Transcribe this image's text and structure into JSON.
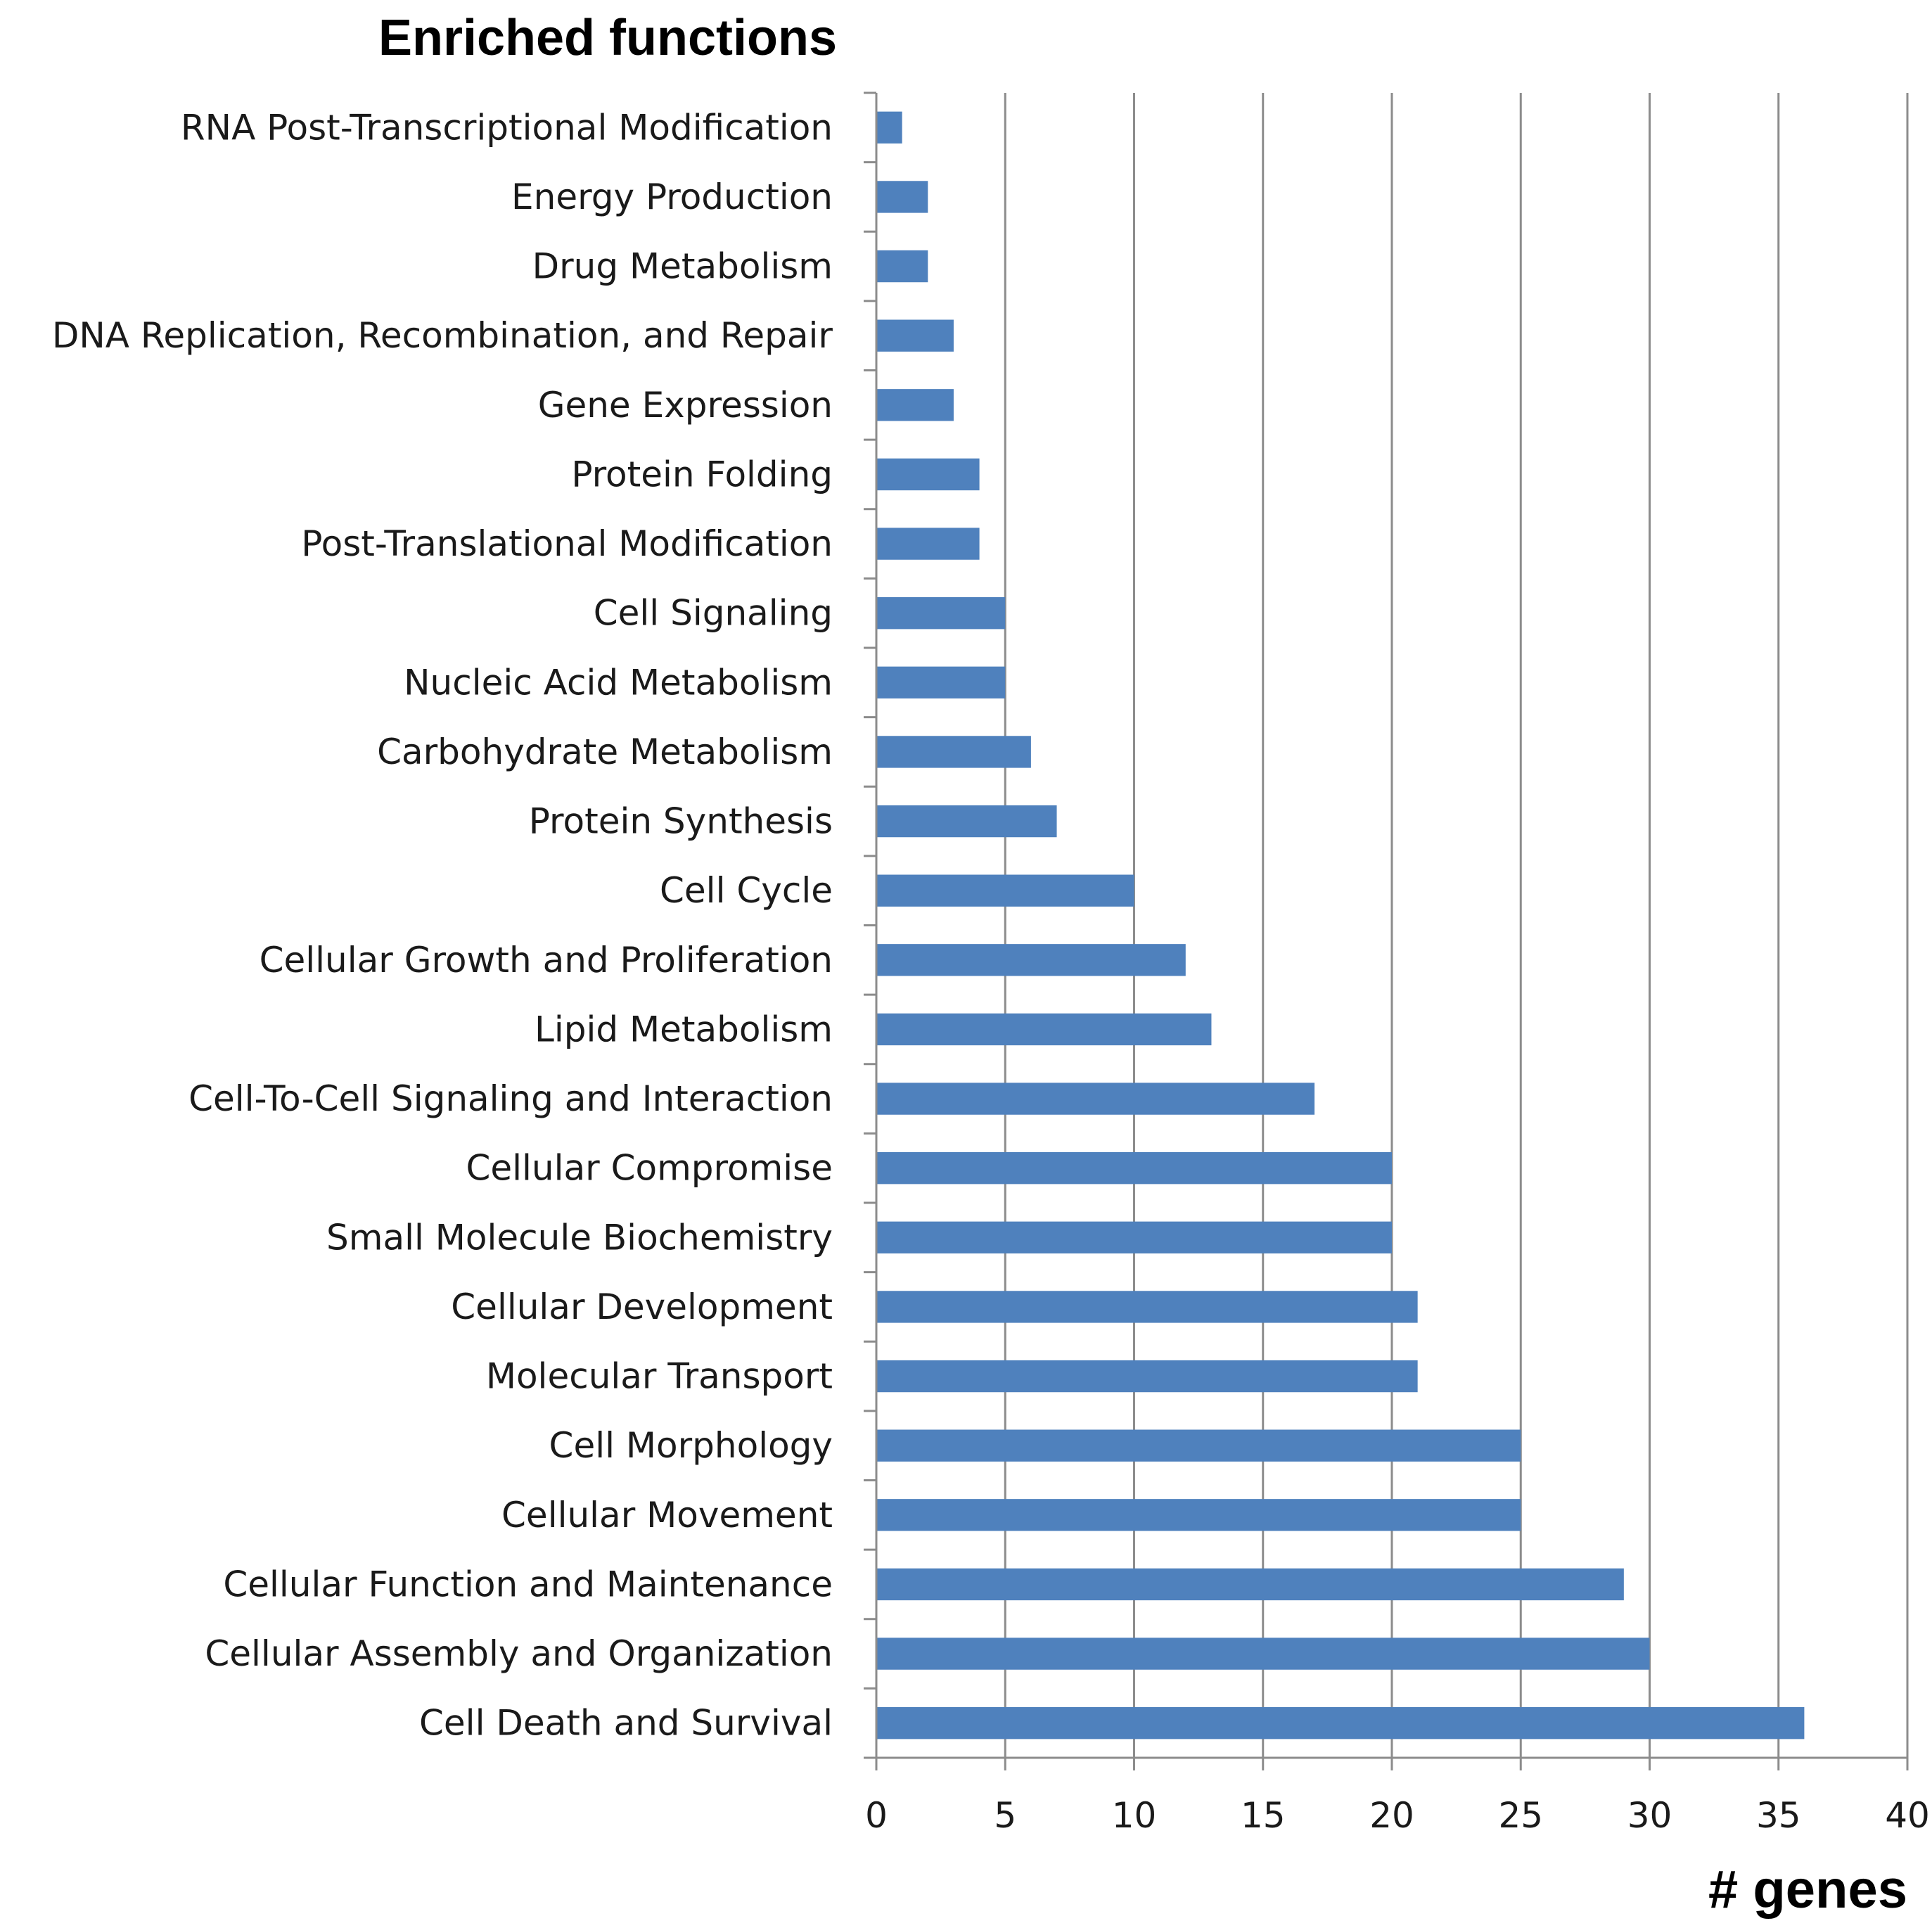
{
  "chart_data": {
    "type": "bar",
    "orientation": "horizontal",
    "title": "Enriched functions",
    "xlabel": "# genes",
    "ylabel": "",
    "xlim": [
      0,
      40
    ],
    "x_ticks": [
      0,
      5,
      10,
      15,
      20,
      25,
      30,
      35,
      40
    ],
    "grid": "vertical",
    "legend": "none",
    "bar_color": "#4f81bd",
    "categories": [
      "RNA Post-Transcriptional Modification",
      "Energy Production",
      "Drug Metabolism",
      "DNA Replication, Recombination, and Repair",
      "Gene Expression",
      "Protein Folding",
      "Post-Translational Modification",
      "Cell Signaling",
      "Nucleic Acid Metabolism",
      "Carbohydrate Metabolism",
      "Protein Synthesis",
      "Cell Cycle",
      "Cellular Growth and Proliferation",
      "Lipid Metabolism",
      "Cell-To-Cell Signaling and Interaction",
      "Cellular Compromise",
      "Small Molecule Biochemistry",
      "Cellular Development",
      "Molecular Transport",
      "Cell Morphology",
      "Cellular Movement",
      "Cellular Function and Maintenance",
      "Cellular Assembly and Organization",
      "Cell Death and Survival"
    ],
    "values": [
      1,
      2,
      2,
      3,
      3,
      4,
      4,
      5,
      5,
      6,
      7,
      10,
      12,
      13,
      17,
      20,
      20,
      21,
      21,
      25,
      25,
      29,
      30,
      36
    ]
  }
}
